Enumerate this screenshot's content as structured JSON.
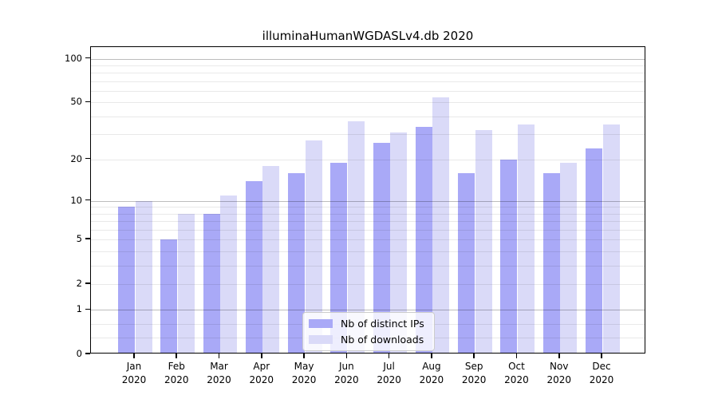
{
  "title": "illuminaHumanWGDASLv4.db 2020",
  "colors": {
    "distinct_ips": "#a9a9f7",
    "downloads": "#dadaf8",
    "axis": "#000000",
    "major_grid": "#c2c2c2",
    "minor_grid": "#ebebeb",
    "legend_border": "#cccccc"
  },
  "chart_data": {
    "type": "bar",
    "title": "illuminaHumanWGDASLv4.db 2020",
    "categories": [
      "Jan",
      "Feb",
      "Mar",
      "Apr",
      "May",
      "Jun",
      "Jul",
      "Aug",
      "Sep",
      "Oct",
      "Nov",
      "Dec"
    ],
    "category_year": "2020",
    "series": [
      {
        "name": "Nb of distinct IPs",
        "color_key": "distinct_ips",
        "values": [
          9,
          5,
          8,
          14,
          16,
          19,
          26,
          34,
          16,
          20,
          16,
          24
        ]
      },
      {
        "name": "Nb of downloads",
        "color_key": "downloads",
        "values": [
          10,
          8,
          11,
          18,
          27,
          37,
          31,
          54,
          32,
          35,
          19,
          35
        ]
      }
    ],
    "xlabel": "",
    "ylabel": "",
    "yscale": "log1p",
    "ylim": [
      0,
      120
    ],
    "yticks": [
      0,
      1,
      2,
      5,
      10,
      20,
      50,
      100
    ],
    "grid_major_at": [
      1,
      10,
      100
    ],
    "grid_minor_at": [
      0.3,
      0.6,
      2,
      3,
      4,
      5,
      6,
      7,
      8,
      9,
      20,
      30,
      40,
      50,
      60,
      70,
      80,
      90
    ],
    "legend_position": "bottom-center",
    "grid": "on"
  }
}
